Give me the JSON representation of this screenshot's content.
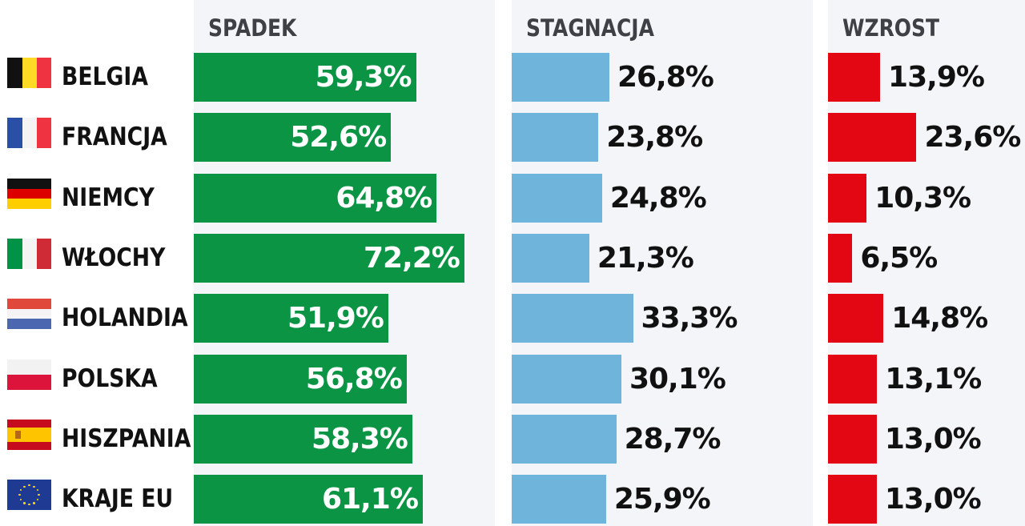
{
  "chart_data": {
    "type": "bar",
    "orientation": "horizontal",
    "categories": [
      "BELGIA",
      "FRANCJA",
      "NIEMCY",
      "WŁOCHY",
      "HOLANDIA",
      "POLSKA",
      "HISZPANIA",
      "KRAJE EU"
    ],
    "flags": [
      "belgium-flag-icon",
      "france-flag-icon",
      "germany-flag-icon",
      "italy-flag-icon",
      "netherlands-flag-icon",
      "poland-flag-icon",
      "spain-flag-icon",
      "eu-flag-icon"
    ],
    "series": [
      {
        "name": "SPADEK",
        "color": "#0b9444",
        "values": [
          59.3,
          52.6,
          64.8,
          72.2,
          51.9,
          56.8,
          58.3,
          61.1
        ],
        "labels": [
          "59,3%",
          "52,6%",
          "64,8%",
          "72,2%",
          "51,9%",
          "56,8%",
          "58,3%",
          "61,1%"
        ]
      },
      {
        "name": "STAGNACJA",
        "color": "#6fb5db",
        "values": [
          26.8,
          23.8,
          24.8,
          21.3,
          33.3,
          30.1,
          28.7,
          25.9
        ],
        "labels": [
          "26,8%",
          "23,8%",
          "24,8%",
          "21,3%",
          "33,3%",
          "30,1%",
          "28,7%",
          "25,9%"
        ]
      },
      {
        "name": "WZROST",
        "color": "#e30613",
        "values": [
          13.9,
          23.6,
          10.3,
          6.5,
          14.8,
          13.1,
          13.0,
          13.0
        ],
        "labels": [
          "13,9%",
          "23,6%",
          "10,3%",
          "6,5%",
          "14,8%",
          "13,1%",
          "13,0%",
          "13,0%"
        ]
      }
    ],
    "unit": "%",
    "grid": false,
    "legend": "none"
  }
}
